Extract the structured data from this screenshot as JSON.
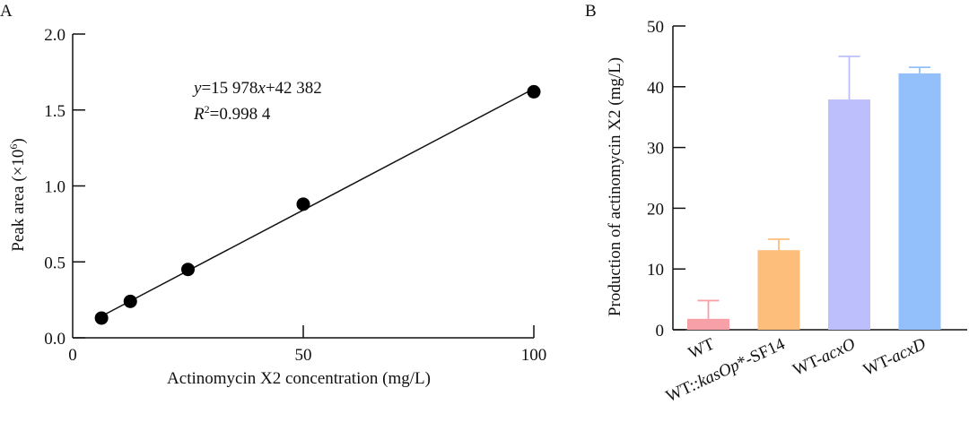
{
  "chart_data": [
    {
      "panel": "A",
      "type": "scatter",
      "title": "",
      "xlabel": "Actinomycin X2 concentration (mg/L)",
      "ylabel": "Peak area (×10⁶)",
      "ylabel_base": "Peak area (×10",
      "ylabel_exp": "6",
      "ylabel_close": ")",
      "xlim": [
        0,
        100
      ],
      "ylim": [
        0,
        2.0
      ],
      "xticks": [
        "0",
        "50",
        "100"
      ],
      "xtick_values": [
        0,
        50,
        100
      ],
      "yticks": [
        "0.0",
        "0.5",
        "1.0",
        "1.5",
        "2.0"
      ],
      "ytick_values": [
        0,
        0.5,
        1.0,
        1.5,
        2.0
      ],
      "grid": false,
      "series": [
        {
          "name": "standards",
          "x": [
            6.25,
            12.5,
            25,
            50,
            100
          ],
          "y": [
            0.13,
            0.24,
            0.45,
            0.88,
            1.62
          ]
        }
      ],
      "fit": {
        "slope": 15978,
        "intercept": 42382,
        "units_y": 1000000
      },
      "annotations": {
        "equation_y": "y",
        "equation_rest1": "=15 978",
        "equation_x": "x",
        "equation_rest2": "+42 382",
        "r2_R": "R",
        "r2_exp": "2",
        "r2_value": "=0.998 4"
      }
    },
    {
      "panel": "B",
      "type": "bar",
      "title": "",
      "xlabel": "",
      "ylabel": "Production of actinomycin X2 (mg/L)",
      "ylim": [
        0,
        50
      ],
      "yticks": [
        "0",
        "10",
        "20",
        "30",
        "40",
        "50"
      ],
      "ytick_values": [
        0,
        10,
        20,
        30,
        40,
        50
      ],
      "grid": false,
      "categories": [
        "WT",
        "WT::kasOp*-SF14",
        "WT-acxO",
        "WT-acxD"
      ],
      "category_parts": [
        [
          {
            "t": "WT",
            "i": false
          }
        ],
        [
          {
            "t": "WT::",
            "i": false
          },
          {
            "t": "kasOp",
            "i": true
          },
          {
            "t": "*-SF14",
            "i": false
          }
        ],
        [
          {
            "t": "WT-",
            "i": false
          },
          {
            "t": "acxO",
            "i": true
          }
        ],
        [
          {
            "t": "WT-",
            "i": false
          },
          {
            "t": "acxD",
            "i": true
          }
        ]
      ],
      "values": [
        1.8,
        13.1,
        37.9,
        42.2
      ],
      "errors": [
        3.0,
        1.8,
        7.1,
        1.0
      ],
      "colors": [
        "#F7A0A8",
        "#FDBE7C",
        "#BDBEFC",
        "#93BFFA"
      ]
    }
  ],
  "panels": {
    "a_label": "A",
    "b_label": "B"
  }
}
